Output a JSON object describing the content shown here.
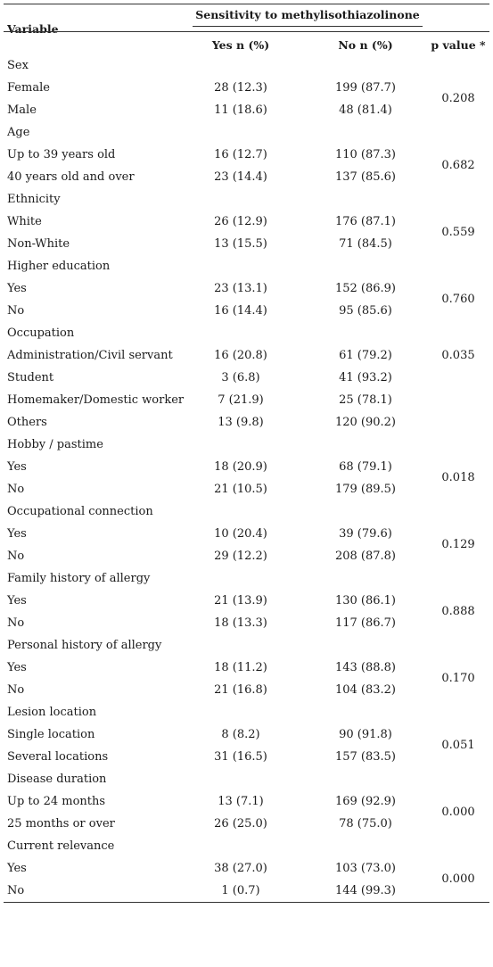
{
  "header": {
    "variable": "Variable",
    "group": "Sensitivity to methylisothiazolinone",
    "yes": "Yes n (%)",
    "no": "No n (%)",
    "p": "p value *"
  },
  "rows": [
    {
      "label": "Sex",
      "yes": "",
      "no": ""
    },
    {
      "label": "Female",
      "yes": "28 (12.3)",
      "no": "199 (87.7)"
    },
    {
      "label": "Male",
      "yes": "11 (18.6)",
      "no": "48 (81.4)"
    },
    {
      "label": "Age",
      "yes": "",
      "no": ""
    },
    {
      "label": "Up to 39 years old",
      "yes": "16 (12.7)",
      "no": "110 (87.3)"
    },
    {
      "label": "40 years old and over",
      "yes": "23 (14.4)",
      "no": "137 (85.6)"
    },
    {
      "label": "Ethnicity",
      "yes": "",
      "no": ""
    },
    {
      "label": "White",
      "yes": "26 (12.9)",
      "no": "176 (87.1)"
    },
    {
      "label": "Non-White",
      "yes": "13 (15.5)",
      "no": "71 (84.5)"
    },
    {
      "label": "Higher education",
      "yes": "",
      "no": ""
    },
    {
      "label": "Yes",
      "yes": "23 (13.1)",
      "no": "152 (86.9)"
    },
    {
      "label": "No",
      "yes": "16 (14.4)",
      "no": "95 (85.6)"
    },
    {
      "label": "Occupation",
      "yes": "",
      "no": ""
    },
    {
      "label": "Administration/Civil servant",
      "yes": "16 (20.8)",
      "no": "61 (79.2)"
    },
    {
      "label": "Student",
      "yes": "3 (6.8)",
      "no": "41 (93.2)"
    },
    {
      "label": "Homemaker/Domestic worker",
      "yes": "7 (21.9)",
      "no": "25 (78.1)"
    },
    {
      "label": "Others",
      "yes": "13 (9.8)",
      "no": "120 (90.2)"
    },
    {
      "label": "Hobby / pastime",
      "yes": "",
      "no": ""
    },
    {
      "label": "Yes",
      "yes": "18 (20.9)",
      "no": "68 (79.1)"
    },
    {
      "label": "No",
      "yes": "21 (10.5)",
      "no": "179 (89.5)"
    },
    {
      "label": "Occupational connection",
      "yes": "",
      "no": ""
    },
    {
      "label": "Yes",
      "yes": "10 (20.4)",
      "no": "39 (79.6)"
    },
    {
      "label": "No",
      "yes": "29 (12.2)",
      "no": "208 (87.8)"
    },
    {
      "label": "Family history of allergy",
      "yes": "",
      "no": ""
    },
    {
      "label": "Yes",
      "yes": "21 (13.9)",
      "no": "130 (86.1)"
    },
    {
      "label": "No",
      "yes": "18 (13.3)",
      "no": "117 (86.7)"
    },
    {
      "label": "Personal history of allergy",
      "yes": "",
      "no": ""
    },
    {
      "label": "Yes",
      "yes": "18 (11.2)",
      "no": "143 (88.8)"
    },
    {
      "label": "No",
      "yes": "21 (16.8)",
      "no": "104 (83.2)"
    },
    {
      "label": "Lesion location",
      "yes": "",
      "no": ""
    },
    {
      "label": "Single location",
      "yes": "8 (8.2)",
      "no": "90 (91.8)"
    },
    {
      "label": "Several locations",
      "yes": "31 (16.5)",
      "no": "157 (83.5)"
    },
    {
      "label": "Disease duration",
      "yes": "",
      "no": ""
    },
    {
      "label": "Up to 24 months",
      "yes": "13 (7.1)",
      "no": "169 (92.9)"
    },
    {
      "label": "25 months or over",
      "yes": "26 (25.0)",
      "no": "78 (75.0)"
    },
    {
      "label": "Current relevance",
      "yes": "",
      "no": ""
    },
    {
      "label": "Yes",
      "yes": "38 (27.0)",
      "no": "103 (73.0)"
    },
    {
      "label": "No",
      "yes": "1 (0.7)",
      "no": "144 (99.3)"
    }
  ],
  "pvalues": [
    {
      "value": "0.208",
      "first_row": 1,
      "span": 2
    },
    {
      "value": "0.682",
      "first_row": 4,
      "span": 2
    },
    {
      "value": "0.559",
      "first_row": 7,
      "span": 2
    },
    {
      "value": "0.760",
      "first_row": 10,
      "span": 2
    },
    {
      "value": "0.035",
      "first_row": 13,
      "span": 1
    },
    {
      "value": "0.018",
      "first_row": 18,
      "span": 2
    },
    {
      "value": "0.129",
      "first_row": 21,
      "span": 2
    },
    {
      "value": "0.888",
      "first_row": 24,
      "span": 2
    },
    {
      "value": "0.170",
      "first_row": 27,
      "span": 2
    },
    {
      "value": "0.051",
      "first_row": 30,
      "span": 2
    },
    {
      "value": "0.000",
      "first_row": 33,
      "span": 2
    },
    {
      "value": "0.000",
      "first_row": 36,
      "span": 2
    }
  ]
}
